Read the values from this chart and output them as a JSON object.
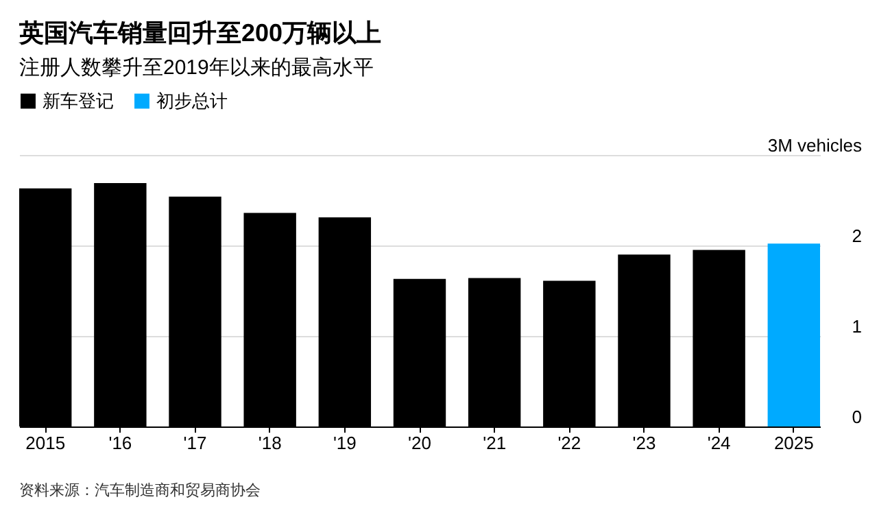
{
  "chart_data": {
    "type": "bar",
    "title": "英国汽车销量回升至200万辆以上",
    "subtitle": "注册人数攀升至2019年以来的最高水平",
    "categories": [
      "2015",
      "'16",
      "'17",
      "'18",
      "'19",
      "'20",
      "'21",
      "'22",
      "'23",
      "'24",
      "2025"
    ],
    "series": [
      {
        "name": "新车登记",
        "color": "#000000",
        "values": [
          2.63,
          2.69,
          2.54,
          2.36,
          2.31,
          1.63,
          1.64,
          1.61,
          1.9,
          1.95,
          null
        ]
      },
      {
        "name": "初步总计",
        "color": "#00aaff",
        "values": [
          null,
          null,
          null,
          null,
          null,
          null,
          null,
          null,
          null,
          null,
          2.02
        ]
      }
    ],
    "ylim": [
      0,
      3
    ],
    "yticks": [
      0,
      1,
      2,
      {
        "value": 3,
        "label": "3M vehicles"
      }
    ],
    "grid": "y",
    "legend": "top left",
    "annotations": [
      "资料来源：汽车制造商和贸易商协会"
    ]
  }
}
